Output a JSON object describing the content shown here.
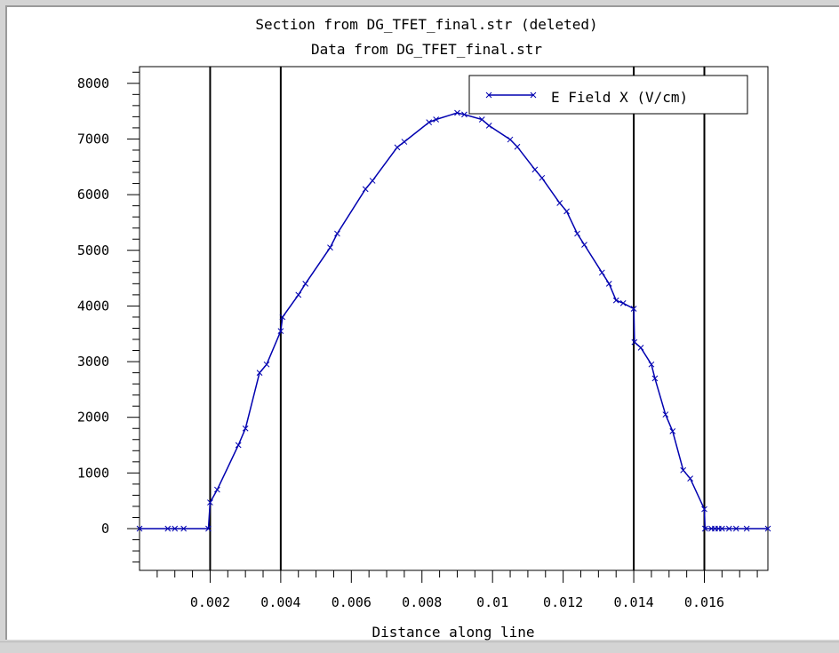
{
  "chart_data": {
    "type": "line",
    "title": "Section from DG_TFET_final.str (deleted)",
    "subtitle": "Data from DG_TFET_final.str",
    "xlabel": "Distance along line",
    "ylabel": "",
    "xlim": [
      0.0,
      0.0178
    ],
    "ylim": [
      -750,
      8300
    ],
    "x_ticks": [
      0.002,
      0.004,
      0.006,
      0.008,
      0.01,
      0.012,
      0.014,
      0.016
    ],
    "x_tick_labels": [
      "0.002",
      "0.004",
      "0.006",
      "0.008",
      "0.01",
      "0.012",
      "0.014",
      "0.016"
    ],
    "y_ticks": [
      0,
      1000,
      2000,
      3000,
      4000,
      5000,
      6000,
      7000,
      8000
    ],
    "y_tick_labels": [
      "0",
      "1000",
      "2000",
      "3000",
      "4000",
      "5000",
      "6000",
      "7000",
      "8000"
    ],
    "vertical_lines_x": [
      0.002,
      0.004,
      0.014,
      0.016
    ],
    "grid": false,
    "legend_position": "top-right",
    "series": [
      {
        "name": "E Field X (V/cm)",
        "color": "#0000b0",
        "marker": "x",
        "x": [
          0.0,
          0.0008,
          0.001,
          0.00125,
          0.00195,
          0.002,
          0.0022,
          0.0028,
          0.003,
          0.0034,
          0.0036,
          0.004,
          0.00405,
          0.0045,
          0.0047,
          0.0054,
          0.0056,
          0.0064,
          0.0066,
          0.0073,
          0.0075,
          0.0082,
          0.0084,
          0.009,
          0.0092,
          0.0097,
          0.0099,
          0.0105,
          0.0107,
          0.0112,
          0.0114,
          0.0119,
          0.0121,
          0.0124,
          0.0126,
          0.0131,
          0.0133,
          0.0135,
          0.0137,
          0.014,
          0.01402,
          0.0142,
          0.0145,
          0.0146,
          0.0149,
          0.0151,
          0.0154,
          0.0156,
          0.016,
          0.01602,
          0.0162,
          0.0163,
          0.0164,
          0.0165,
          0.0167,
          0.0169,
          0.0172,
          0.0178
        ],
        "y": [
          0,
          0,
          0,
          0,
          0,
          470,
          700,
          1500,
          1800,
          2800,
          2950,
          3550,
          3800,
          4200,
          4400,
          5050,
          5300,
          6100,
          6250,
          6850,
          6950,
          7300,
          7350,
          7470,
          7440,
          7350,
          7240,
          6990,
          6860,
          6450,
          6300,
          5850,
          5700,
          5300,
          5100,
          4600,
          4400,
          4100,
          4050,
          3950,
          3350,
          3250,
          2950,
          2700,
          2050,
          1750,
          1050,
          900,
          350,
          0,
          0,
          0,
          0,
          0,
          0,
          0,
          0,
          0
        ]
      }
    ]
  }
}
